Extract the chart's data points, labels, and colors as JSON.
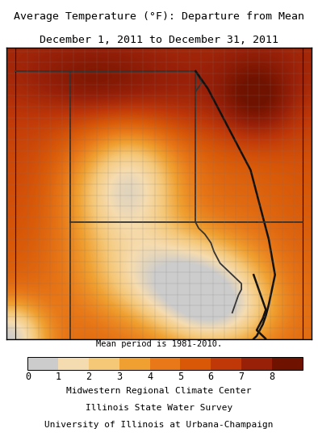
{
  "title_line1": "Average Temperature (°F): Departure from Mean",
  "title_line2": "December 1, 2011 to December 31, 2011",
  "mean_period_text": "Mean period is 1981-2010.",
  "footer_lines": [
    "Midwestern Regional Climate Center",
    "Illinois State Water Survey",
    "University of Illinois at Urbana-Champaign"
  ],
  "colorbar_ticks": [
    0,
    1,
    2,
    3,
    4,
    5,
    6,
    7,
    8
  ],
  "colorbar_colors": [
    "#cccccc",
    "#f5dcb0",
    "#f5c878",
    "#f0a030",
    "#e87818",
    "#d85808",
    "#c03808",
    "#982008",
    "#701200"
  ],
  "background_color": "#ffffff",
  "title_fontsize": 9.5,
  "footer_fontsize": 8.0,
  "colorbar_label_fontsize": 8.5,
  "mean_period_fontsize": 7.5
}
